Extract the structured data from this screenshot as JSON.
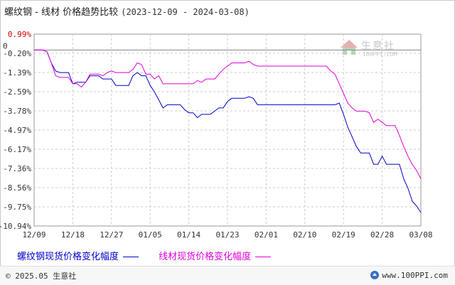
{
  "header": {
    "title": "螺纹钢 - 线材 价格趋势比较",
    "date_range": "(2023-12-09 - 2024-03-08)"
  },
  "watermark": {
    "name": "生意社",
    "url": "100PPI.COM"
  },
  "footer": {
    "copyright": "© 2025.05 生意社",
    "site": "www.100PPI.com"
  },
  "colors": {
    "series1": "#0000cc",
    "series2": "#dd00dd",
    "top_tick": "#cc0000",
    "grid": "#cccccc"
  },
  "chart_data": {
    "type": "line",
    "title": "螺纹钢 - 线材 价格趋势比较",
    "xlabel": "",
    "ylabel": "",
    "x_ticks": [
      "12/09",
      "12/18",
      "12/27",
      "01/05",
      "01/14",
      "01/23",
      "02/01",
      "02/10",
      "02/19",
      "02/28",
      "03/08"
    ],
    "y_ticks": [
      "0.99%",
      "-0.20%",
      "-1.39%",
      "-2.59%",
      "-3.78%",
      "-4.97%",
      "-6.17%",
      "-7.36%",
      "-8.56%",
      "-9.75%",
      "-10.94%"
    ],
    "ylim": [
      -10.94,
      0.99
    ],
    "grid": true,
    "legend_position": "bottom-left",
    "series": [
      {
        "name": "螺纹钢现货价格变化幅度",
        "values": [
          0,
          0,
          0,
          -0.1,
          -0.8,
          -1.3,
          -1.4,
          -1.4,
          -1.4,
          -2.1,
          -2.0,
          -2.0,
          -2.0,
          -1.6,
          -1.6,
          -1.6,
          -1.8,
          -1.8,
          -1.8,
          -2.2,
          -2.2,
          -2.2,
          -2.2,
          -1.6,
          -1.4,
          -1.6,
          -1.6,
          -2.2,
          -2.6,
          -3.1,
          -3.6,
          -3.4,
          -3.4,
          -3.4,
          -3.4,
          -3.7,
          -3.9,
          -3.9,
          -4.2,
          -4.0,
          -4.0,
          -4.0,
          -3.8,
          -3.6,
          -3.6,
          -3.2,
          -3.0,
          -3.0,
          -3.0,
          -3.0,
          -2.9,
          -3.0,
          -3.4,
          -3.4,
          -3.4,
          -3.4,
          -3.4,
          -3.4,
          -3.4,
          -3.4,
          -3.4,
          -3.4,
          -3.4,
          -3.4,
          -3.4,
          -3.4,
          -3.4,
          -3.4,
          -3.4,
          -3.4,
          -3.4,
          -3.3,
          -4.0,
          -4.8,
          -5.4,
          -6.0,
          -6.4,
          -6.4,
          -6.4,
          -7.1,
          -7.1,
          -6.6,
          -7.1,
          -7.1,
          -7.1,
          -7.1,
          -8.0,
          -8.6,
          -9.4,
          -9.7,
          -10.1
        ]
      },
      {
        "name": "线材现货价格变化幅度",
        "values": [
          0,
          0,
          0,
          -0.1,
          -0.8,
          -1.6,
          -1.7,
          -1.7,
          -1.7,
          -2.1,
          -2.1,
          -2.3,
          -2.0,
          -1.5,
          -1.5,
          -1.5,
          -1.6,
          -1.4,
          -1.3,
          -1.4,
          -1.4,
          -1.4,
          -1.4,
          -1.2,
          -0.8,
          -0.9,
          -1.5,
          -1.5,
          -1.8,
          -1.6,
          -2.1,
          -2.1,
          -2.1,
          -2.1,
          -2.1,
          -2.1,
          -2.1,
          -2.1,
          -1.9,
          -2.0,
          -1.8,
          -1.8,
          -1.8,
          -1.5,
          -1.2,
          -1.0,
          -0.8,
          -0.8,
          -0.8,
          -0.8,
          -0.7,
          -0.9,
          -1.0,
          -1.0,
          -1.0,
          -1.0,
          -1.0,
          -1.0,
          -1.0,
          -1.0,
          -1.0,
          -1.0,
          -1.0,
          -1.0,
          -1.0,
          -1.0,
          -1.0,
          -1.0,
          -1.0,
          -1.3,
          -1.5,
          -2.1,
          -2.7,
          -3.3,
          -3.6,
          -3.8,
          -3.8,
          -3.8,
          -3.9,
          -4.5,
          -4.3,
          -4.5,
          -4.7,
          -4.7,
          -4.7,
          -5.3,
          -6.0,
          -6.6,
          -7.1,
          -7.5,
          -8.0
        ]
      }
    ]
  }
}
